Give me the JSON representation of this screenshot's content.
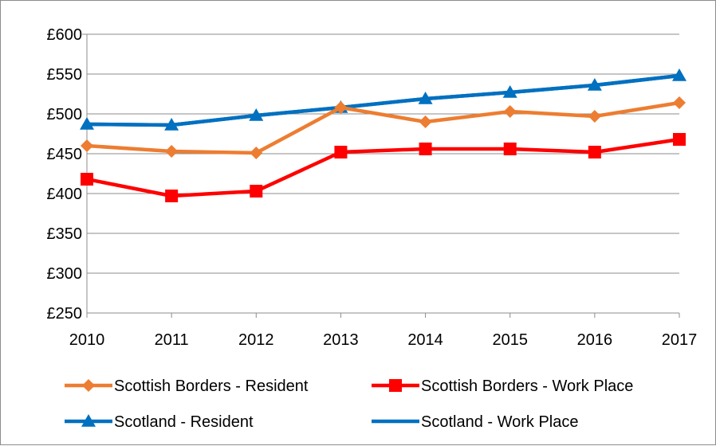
{
  "chart_data": {
    "type": "line",
    "title": "",
    "xlabel": "",
    "ylabel": "",
    "categories": [
      "2010",
      "2011",
      "2012",
      "2013",
      "2014",
      "2015",
      "2016",
      "2017"
    ],
    "ylim": [
      250,
      600
    ],
    "y_ticks": [
      250,
      300,
      350,
      400,
      450,
      500,
      550,
      600
    ],
    "y_tick_labels": [
      "£250",
      "£300",
      "£350",
      "£400",
      "£450",
      "£500",
      "£550",
      "£600"
    ],
    "grid": "horizontal",
    "legend_position": "bottom",
    "series": [
      {
        "name": "Scottish Borders - Resident",
        "color": "#ED7D31",
        "marker": "diamond",
        "values": [
          460,
          453,
          451,
          508,
          490,
          503,
          497,
          514
        ]
      },
      {
        "name": "Scottish Borders - Work Place",
        "color": "#FF0000",
        "marker": "square",
        "values": [
          418,
          397,
          403,
          452,
          456,
          456,
          452,
          468
        ]
      },
      {
        "name": "Scotland - Resident",
        "color": "#0070C0",
        "marker": "triangle",
        "values": [
          487,
          486,
          498,
          508,
          519,
          527,
          536,
          548
        ]
      },
      {
        "name": "Scotland - Work Place",
        "color": "#0070C0",
        "marker": "none",
        "values": [
          487,
          486,
          498,
          508,
          519,
          527,
          536,
          548
        ]
      }
    ]
  }
}
